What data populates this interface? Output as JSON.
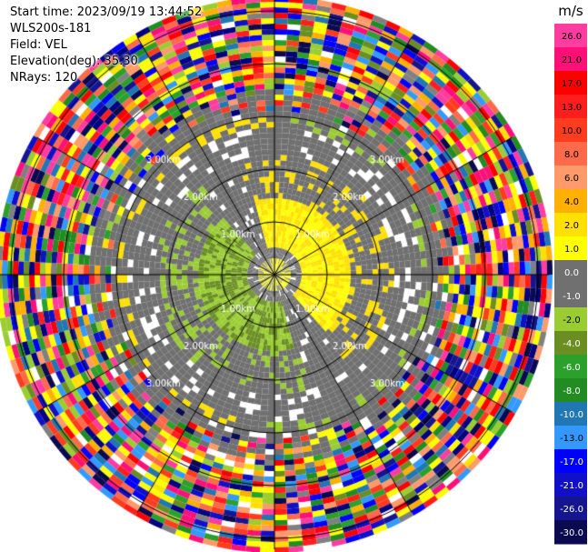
{
  "header": {
    "start_time": "Start time: 2023/09/19 13:44:52",
    "instrument": "WLS200s-181",
    "field": "Field: VEL",
    "elevation": "Elevation(deg): 35.30",
    "nrays": "NRays: 120"
  },
  "colorbar": {
    "unit": "m/s",
    "ticks": [
      "26.0",
      "21.0",
      "17.0",
      "13.0",
      "10.0",
      "8.0",
      "6.0",
      "4.0",
      "2.0",
      "1.0",
      "0.0",
      "-1.0",
      "-2.0",
      "-4.0",
      "-6.0",
      "-8.0",
      "-10.0",
      "-13.0",
      "-17.0",
      "-21.0",
      "-26.0",
      "-30.0"
    ],
    "colors": [
      "#ff3ca0",
      "#ff0f78",
      "#ff0000",
      "#ff1e1e",
      "#ff3c1e",
      "#ff6a4a",
      "#ff9a6a",
      "#ffb000",
      "#ffe000",
      "#ffff00",
      "#707070",
      "#707070",
      "#9acd32",
      "#6b8e23",
      "#2ca02c",
      "#228b22",
      "#1f77b4",
      "#3399ff",
      "#0000ff",
      "#1010c8",
      "#151590",
      "#0a0a50"
    ]
  },
  "chart_data": {
    "type": "ppi",
    "title": "",
    "rings_km": [
      1.0,
      2.0,
      3.0,
      4.0,
      5.0
    ],
    "ring_labels": [
      "1.00km",
      "2.00km",
      "3.00km"
    ],
    "azimuth_spokes_deg": [
      0,
      30,
      60,
      90,
      120,
      150,
      180,
      210,
      240,
      270,
      300,
      330
    ],
    "nrays": 120,
    "velocity_pattern": {
      "inner_positive_ms": [
        1.0,
        2.0
      ],
      "inner_negative_ms": [
        -1.0,
        -2.0
      ],
      "noise_beyond_km": 3.5
    }
  }
}
